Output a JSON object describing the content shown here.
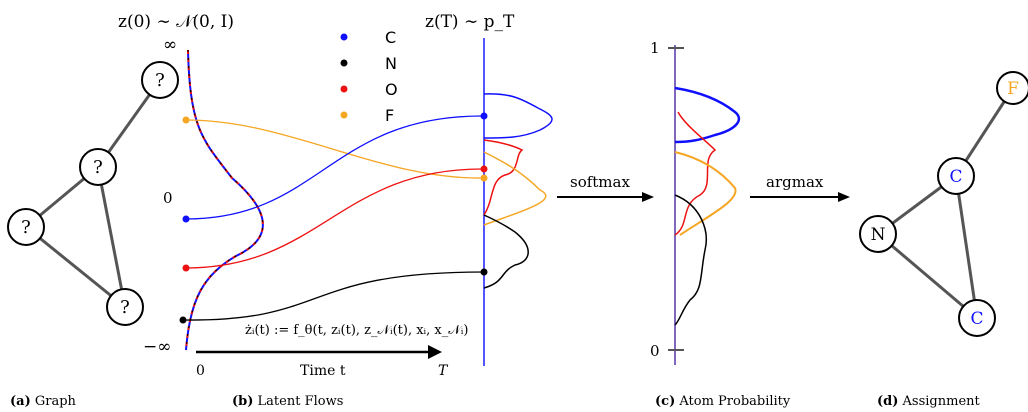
{
  "colors": {
    "C": "#1010ff",
    "N": "#000000",
    "O": "#ee1111",
    "F": "#f5a623",
    "axis": "#1a1aff",
    "edge": "#555555"
  },
  "panel_a": {
    "nodes": [
      "?",
      "?",
      "?",
      "?"
    ],
    "caption_letter": "(a)",
    "caption_text": "Graph"
  },
  "panel_b": {
    "prior_label": "z(0) ∼ 𝒩(0, I)",
    "target_label": "z(T) ∼ p_T",
    "inf_top": "∞",
    "zero_label": "0",
    "neg_inf": "−∞",
    "legend": [
      {
        "symbol": "C",
        "color_key": "C"
      },
      {
        "symbol": "N",
        "color_key": "N"
      },
      {
        "symbol": "O",
        "color_key": "O"
      },
      {
        "symbol": "F",
        "color_key": "F"
      }
    ],
    "ode": "żᵢ(t) := f_θ(t, zᵢ(t), z_𝒩ᵢ(t), xᵢ, x_𝒩ᵢ)",
    "time_axis_zero": "0",
    "time_axis_label": "Time t",
    "time_axis_T": "T",
    "caption_letter": "(b)",
    "caption_text": "Latent Flows"
  },
  "panel_c": {
    "softmax_label": "softmax",
    "argmax_label": "argmax",
    "tick_top": "1",
    "tick_bottom": "0",
    "caption_letter": "(c)",
    "caption_text": "Atom Probability"
  },
  "panel_d": {
    "nodes": [
      {
        "symbol": "F",
        "color_key": "F"
      },
      {
        "symbol": "C",
        "color_key": "C"
      },
      {
        "symbol": "N",
        "color_key": "N"
      },
      {
        "symbol": "C",
        "color_key": "C"
      }
    ],
    "caption_letter": "(d)",
    "caption_text": "Assignment"
  }
}
